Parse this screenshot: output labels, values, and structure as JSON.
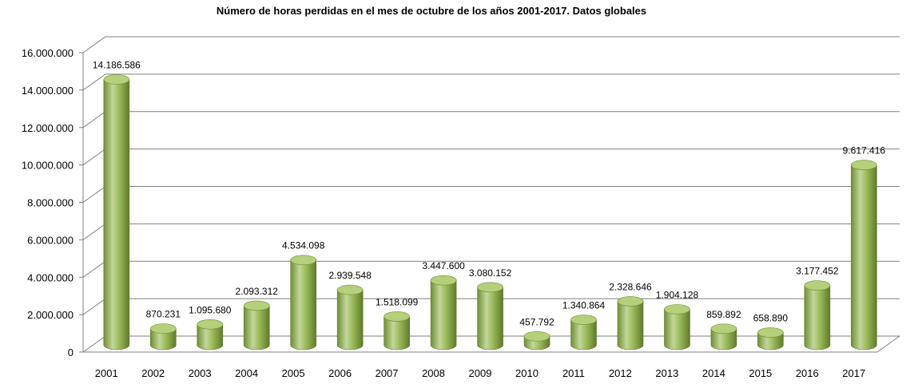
{
  "chart_data": {
    "type": "bar",
    "style": "3d-cylinder",
    "title": "Número de horas  perdidas en el mes de octubre de los años 2001-2017.  Datos globales",
    "categories": [
      "2001",
      "2002",
      "2003",
      "2004",
      "2005",
      "2006",
      "2007",
      "2008",
      "2009",
      "2010",
      "2011",
      "2012",
      "2013",
      "2014",
      "2015",
      "2016",
      "2017"
    ],
    "values": [
      14186586,
      870231,
      1095680,
      2093312,
      4534098,
      2939548,
      1518099,
      3447600,
      3080152,
      457792,
      1340864,
      2328646,
      1904128,
      859892,
      658890,
      3177452,
      9617416
    ],
    "value_labels": [
      "14.186.586",
      "870.231",
      "1.095.680",
      "2.093.312",
      "4.534.098",
      "2.939.548",
      "1.518.099",
      "3.447.600",
      "3.080.152",
      "457.792",
      "1.340.864",
      "2.328.646",
      "1.904.128",
      "859.892",
      "658.890",
      "3.177.452",
      "9.617.416"
    ],
    "y_ticks": [
      0,
      2000000,
      4000000,
      6000000,
      8000000,
      10000000,
      12000000,
      14000000,
      16000000
    ],
    "y_tick_labels": [
      "0",
      "2.000.000",
      "4.000.000",
      "6.000.000",
      "8.000.000",
      "10.000.000",
      "12.000.000",
      "14.000.000",
      "16.000.000"
    ],
    "ylim": [
      0,
      16000000
    ],
    "grid": true,
    "legend": "none",
    "colors": {
      "bar_fill": "#9bbb59",
      "bar_light": "#c3d69b",
      "bar_dark": "#6f8f34",
      "bar_top": "#b5cf7a",
      "grid": "#7f7f7f"
    }
  }
}
